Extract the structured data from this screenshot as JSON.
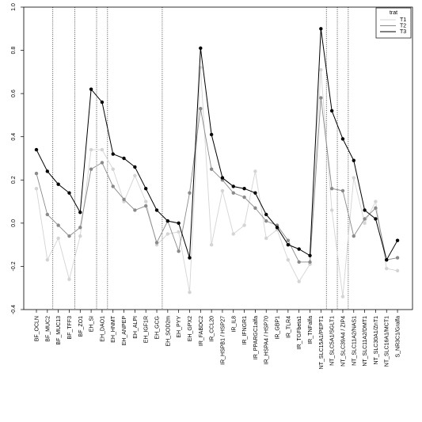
{
  "chart_data": {
    "type": "line",
    "ylim": [
      -0.4,
      1.0
    ],
    "yticks": [
      -0.4,
      -0.2,
      0.0,
      0.2,
      0.4,
      0.6,
      0.8,
      1.0
    ],
    "ytick_labels": [
      "-0.4",
      "-0.2",
      "0.0",
      "0.2",
      "0.4",
      "0.6",
      "0.8",
      "1.0"
    ],
    "categories": [
      "BF_OCLN",
      "BF_MUC2",
      "BF_MUC13",
      "BF_TFF3",
      "BF_ZO1",
      "EH_SI",
      "EH_DAO1",
      "EH_HNMT",
      "EH_ANPEP",
      "EH_ALPI",
      "EH_IGF1R",
      "EH_GCG",
      "EH_SOD2m",
      "EH_PYY",
      "EH_GPX2",
      "IR_FABDC2",
      "IR_CCL20",
      "IR_HSPB1 / HSP27",
      "IR_IL8",
      "IR_IFNGR1",
      "IR_PPARGC1alfa",
      "IR_HSPA4 / HSP70",
      "IR_GBP1",
      "IR_TLR4",
      "IR_TGFbeta1",
      "IR_TNFalfa",
      "NT_SLC15A1/PEPT1",
      "NT_SLC5A1/SGLT1",
      "NT_SLC39A4 / ZIP4",
      "NT_SLC11A2/NAS1",
      "NT_SLC11A2/DMT1",
      "NT_SLC30A1/ZnT1",
      "NT_SLC16A1/MCT1",
      "S_NR3C1/Gralfa"
    ],
    "group_separators_after": [
      "BF_MUC2",
      "BF_TFF3",
      "EH_SI",
      "EH_DAO1",
      "EH_GCG",
      "NT_SLC15A1/PEPT1",
      "NT_SLC5A1/SGLT1",
      "NT_SLC39A4 / ZIP4"
    ],
    "legend_title": "trat",
    "legend_position": "top-right",
    "series": [
      {
        "name": "T1",
        "color": "#d4d4d4",
        "values": [
          0.16,
          -0.17,
          -0.07,
          -0.26,
          -0.06,
          0.34,
          0.34,
          0.25,
          0.1,
          0.22,
          0.1,
          -0.1,
          -0.05,
          -0.04,
          -0.32,
          0.72,
          -0.1,
          0.15,
          -0.05,
          -0.01,
          0.24,
          -0.07,
          -0.03,
          -0.17,
          -0.27,
          -0.19,
          0.71,
          0.06,
          -0.34,
          0.21,
          0.0,
          0.1,
          -0.21,
          -0.22
        ]
      },
      {
        "name": "T2",
        "color": "#8a8a8a",
        "values": [
          0.23,
          0.04,
          -0.01,
          -0.06,
          -0.02,
          0.25,
          0.28,
          0.17,
          0.11,
          0.06,
          0.08,
          -0.09,
          0.01,
          -0.13,
          0.14,
          0.53,
          0.25,
          0.2,
          0.14,
          0.12,
          0.07,
          0.01,
          -0.01,
          -0.08,
          -0.18,
          -0.18,
          0.58,
          0.16,
          0.15,
          -0.06,
          0.02,
          0.07,
          -0.17,
          -0.16
        ]
      },
      {
        "name": "T3",
        "color": "#000000",
        "values": [
          0.34,
          0.24,
          0.18,
          0.14,
          0.05,
          0.62,
          0.56,
          0.32,
          0.3,
          0.26,
          0.16,
          0.06,
          0.01,
          0.0,
          -0.16,
          0.81,
          0.41,
          0.21,
          0.17,
          0.16,
          0.14,
          0.04,
          -0.02,
          -0.1,
          -0.12,
          -0.15,
          0.9,
          0.52,
          0.39,
          0.29,
          0.06,
          0.02,
          -0.17,
          -0.08
        ]
      }
    ]
  }
}
